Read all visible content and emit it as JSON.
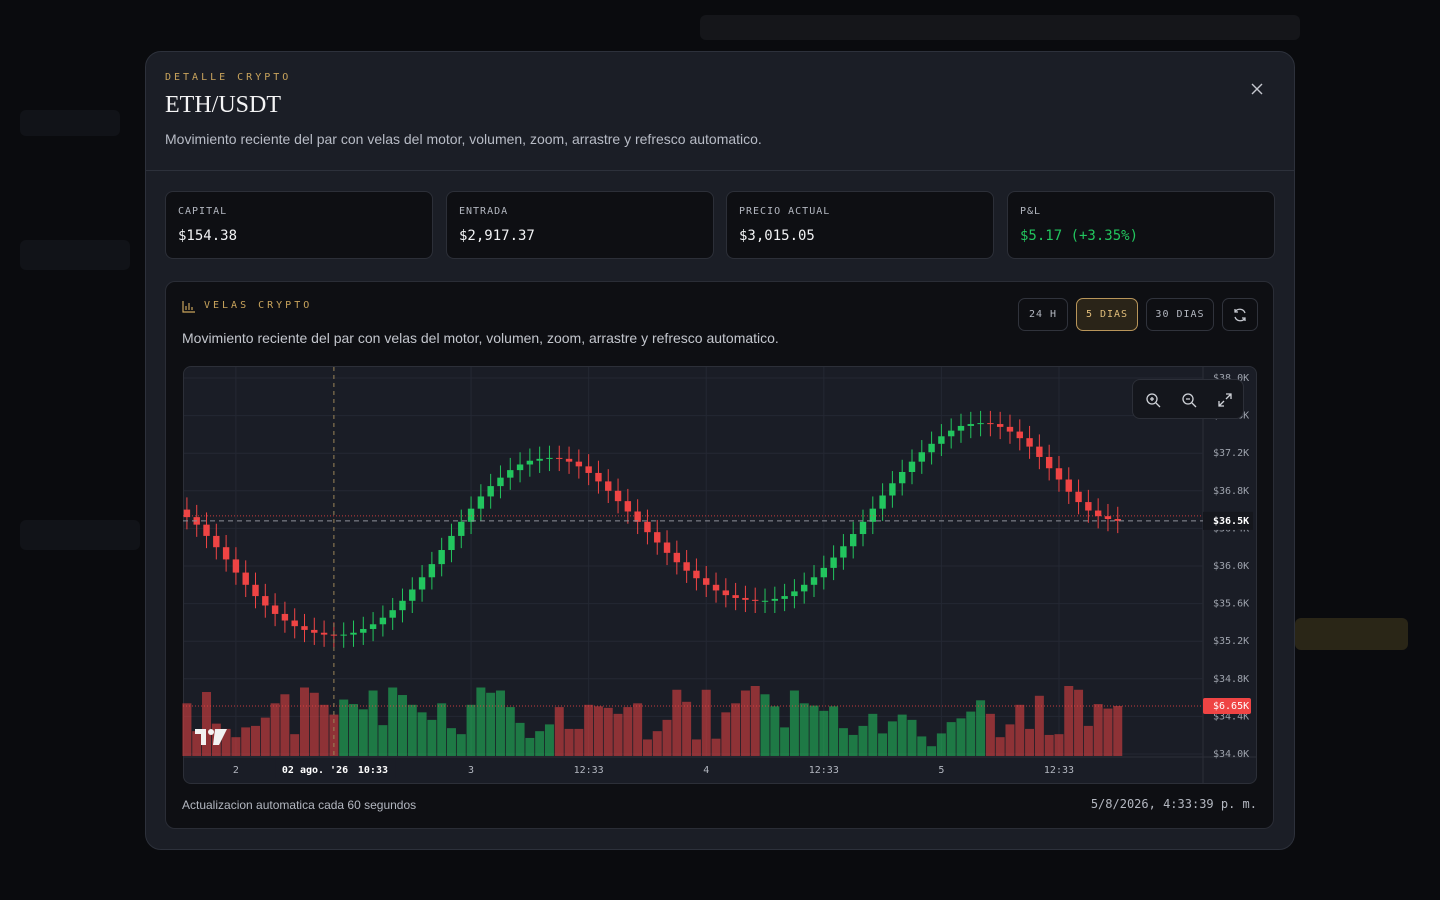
{
  "header": {
    "eyebrow": "DETALLE CRYPTO",
    "title": "ETH/USDT",
    "description": "Movimiento reciente del par con velas del motor, volumen, zoom, arrastre y refresco automatico."
  },
  "stats": [
    {
      "label": "CAPITAL",
      "value": "$154.38"
    },
    {
      "label": "ENTRADA",
      "value": "$2,917.37"
    },
    {
      "label": "PRECIO ACTUAL",
      "value": "$3,015.05"
    },
    {
      "label": "P&L",
      "value": "$5.17 (+3.35%)"
    }
  ],
  "panel": {
    "title": "VELAS CRYPTO",
    "description": "Movimiento reciente del par con velas del motor, volumen, zoom, arrastre y refresco automatico.",
    "ranges": [
      "24 H",
      "5 DIAS",
      "30 DIAS"
    ],
    "active_range": 1,
    "footer_note": "Actualizacion automatica cada 60 segundos",
    "updated": "5/8/2026, 4:33:39 p. m."
  },
  "chart_data": {
    "type": "candlestick",
    "up_color": "#22c55e",
    "down_color": "#ef4444",
    "open": [
      36600,
      36520,
      36440,
      36320,
      36200,
      36070,
      35930,
      35800,
      35680,
      35580,
      35490,
      35420,
      35360,
      35320,
      35290,
      35270,
      35260,
      35270,
      35290,
      35330,
      35380,
      35450,
      35530,
      35630,
      35750,
      35880,
      36020,
      36170,
      36320,
      36470,
      36610,
      36740,
      36850,
      36940,
      37020,
      37080,
      37120,
      37140,
      37150,
      37140,
      37110,
      37060,
      36990,
      36900,
      36800,
      36690,
      36580,
      36470,
      36360,
      36250,
      36140,
      36040,
      35950,
      35870,
      35800,
      35740,
      35690,
      35660,
      35640,
      35630,
      35630,
      35650,
      35680,
      35730,
      35800,
      35880,
      35980,
      36090,
      36210,
      36340,
      36470,
      36610,
      36750,
      36880,
      37000,
      37110,
      37210,
      37300,
      37380,
      37440,
      37490,
      37510,
      37520,
      37510,
      37480,
      37430,
      37360,
      37270,
      37160,
      37040,
      36920,
      36790,
      36680,
      36590,
      36530,
      36500
    ],
    "high": [
      36730,
      36650,
      36570,
      36450,
      36330,
      36200,
      36060,
      35930,
      35810,
      35710,
      35620,
      35550,
      35490,
      35450,
      35420,
      35400,
      35400,
      35420,
      35460,
      35510,
      35580,
      35660,
      35760,
      35880,
      36010,
      36150,
      36300,
      36450,
      36600,
      36740,
      36870,
      36980,
      37070,
      37150,
      37210,
      37250,
      37270,
      37280,
      37280,
      37270,
      37240,
      37190,
      37120,
      37030,
      36930,
      36820,
      36710,
      36600,
      36490,
      36380,
      36270,
      36170,
      36080,
      36000,
      35930,
      35870,
      35820,
      35790,
      35770,
      35760,
      35780,
      35810,
      35860,
      35930,
      36010,
      36110,
      36220,
      36340,
      36470,
      36600,
      36740,
      36880,
      37010,
      37130,
      37240,
      37340,
      37430,
      37510,
      37570,
      37620,
      37640,
      37650,
      37650,
      37640,
      37610,
      37560,
      37490,
      37400,
      37290,
      37170,
      37050,
      36920,
      36810,
      36720,
      36660,
      36630
    ],
    "low": [
      36390,
      36310,
      36190,
      36070,
      35940,
      35800,
      35670,
      35550,
      35450,
      35360,
      35290,
      35230,
      35190,
      35160,
      35140,
      35130,
      35130,
      35140,
      35160,
      35200,
      35250,
      35320,
      35400,
      35500,
      35620,
      35750,
      35890,
      36040,
      36190,
      36340,
      36480,
      36610,
      36720,
      36810,
      36890,
      36950,
      36990,
      37010,
      37010,
      36980,
      36930,
      36860,
      36770,
      36670,
      36560,
      36450,
      36340,
      36230,
      36120,
      36010,
      35910,
      35820,
      35740,
      35670,
      35610,
      35560,
      35530,
      35510,
      35500,
      35500,
      35500,
      35520,
      35550,
      35600,
      35670,
      35750,
      35850,
      35960,
      36080,
      36210,
      36340,
      36480,
      36620,
      36750,
      36870,
      36980,
      37080,
      37170,
      37250,
      37310,
      37360,
      37380,
      37380,
      37350,
      37300,
      37230,
      37140,
      37030,
      36910,
      36790,
      36660,
      36550,
      36460,
      36400,
      36370,
      36350
    ],
    "close": [
      36520,
      36440,
      36320,
      36200,
      36070,
      35930,
      35800,
      35680,
      35580,
      35490,
      35420,
      35360,
      35320,
      35290,
      35270,
      35260,
      35270,
      35290,
      35330,
      35380,
      35450,
      35530,
      35630,
      35750,
      35880,
      36020,
      36170,
      36320,
      36470,
      36610,
      36740,
      36850,
      36940,
      37020,
      37080,
      37120,
      37140,
      37150,
      37140,
      37110,
      37060,
      36990,
      36900,
      36800,
      36690,
      36580,
      36470,
      36360,
      36250,
      36140,
      36040,
      35950,
      35870,
      35800,
      35740,
      35690,
      35660,
      35640,
      35630,
      35630,
      35650,
      35680,
      35730,
      35800,
      35880,
      35980,
      36090,
      36210,
      36340,
      36470,
      36610,
      36750,
      36880,
      37000,
      37110,
      37210,
      37300,
      37380,
      37440,
      37490,
      37510,
      37520,
      37510,
      37480,
      37430,
      37360,
      37270,
      37160,
      37040,
      36920,
      36790,
      36680,
      36590,
      36530,
      36500,
      36480
    ],
    "volume": [
      7000,
      3300,
      8500,
      4300,
      3600,
      2500,
      3800,
      4000,
      5100,
      7000,
      8200,
      2900,
      9100,
      8400,
      6800,
      5500,
      7500,
      6900,
      6200,
      8700,
      4100,
      9100,
      8100,
      6800,
      5800,
      4800,
      7000,
      3700,
      2900,
      6800,
      9100,
      8400,
      8700,
      6500,
      4400,
      2400,
      3300,
      4200,
      6500,
      3600,
      3600,
      6800,
      6600,
      6400,
      5600,
      6500,
      7000,
      2200,
      3300,
      4800,
      8800,
      7200,
      2200,
      8800,
      2300,
      5800,
      7000,
      8700,
      9300,
      8200,
      6600,
      3800,
      8700,
      7000,
      6700,
      6000,
      6600,
      3700,
      2800,
      4000,
      5600,
      3000,
      4600,
      5500,
      4800,
      2600,
      1300,
      3000,
      4500,
      5000,
      5900,
      7400,
      5600,
      2500,
      4200,
      6800,
      3600,
      8000,
      2800,
      2900,
      9300,
      8800,
      4000,
      6900,
      6300,
      6650
    ],
    "xlim": [
      -0.4,
      103.7
    ],
    "xticks": [
      {
        "value": 5,
        "label": "2"
      },
      {
        "value": 29,
        "label": "3"
      },
      {
        "value": 41,
        "label": "12:33"
      },
      {
        "value": 53,
        "label": "4"
      },
      {
        "value": 65,
        "label": "12:33"
      },
      {
        "value": 77,
        "label": "5"
      },
      {
        "value": 89,
        "label": "12:33"
      }
    ],
    "ylim": [
      34000,
      38000
    ],
    "yticks": [
      {
        "value": 34000,
        "label": "$34.0K"
      },
      {
        "value": 34400,
        "label": "$34.4K"
      },
      {
        "value": 34800,
        "label": "$34.8K"
      },
      {
        "value": 35200,
        "label": "$35.2K"
      },
      {
        "value": 35600,
        "label": "$35.6K"
      },
      {
        "value": 36000,
        "label": "$36.0K"
      },
      {
        "value": 36400,
        "label": "$36.4K"
      },
      {
        "value": 36800,
        "label": "$36.8K"
      },
      {
        "value": 37200,
        "label": "$37.2K"
      },
      {
        "value": 37600,
        "label": "$37.6K"
      },
      {
        "value": 38000,
        "label": "$38.0K"
      }
    ],
    "volume_lim": [
      0,
      9300
    ],
    "grid": true,
    "crosshair": {
      "index": 15,
      "date": "02 ago. '26",
      "time": "10:33",
      "price": 36480,
      "price_label": "$36.5K"
    },
    "volume_marker": {
      "value": 6650,
      "label": "$6.65K"
    }
  }
}
